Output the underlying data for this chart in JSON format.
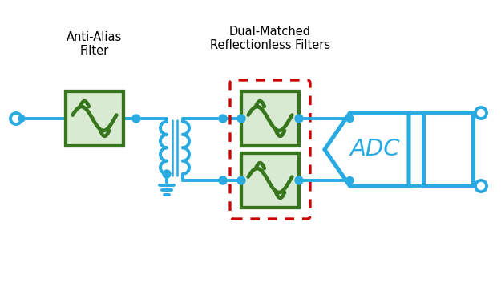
{
  "bg_color": "#ffffff",
  "line_color": "#29abe2",
  "filter_fill": "#d9ead3",
  "filter_border": "#38761d",
  "adc_text_color": "#29abe2",
  "label_color": "#000000",
  "dashed_rect_color": "#cc0000",
  "title_antialias": "Anti-Alias\nFilter",
  "title_dual": "Dual-Matched\nReflectionless Filters",
  "lw": 2.8,
  "dot_r": 5
}
